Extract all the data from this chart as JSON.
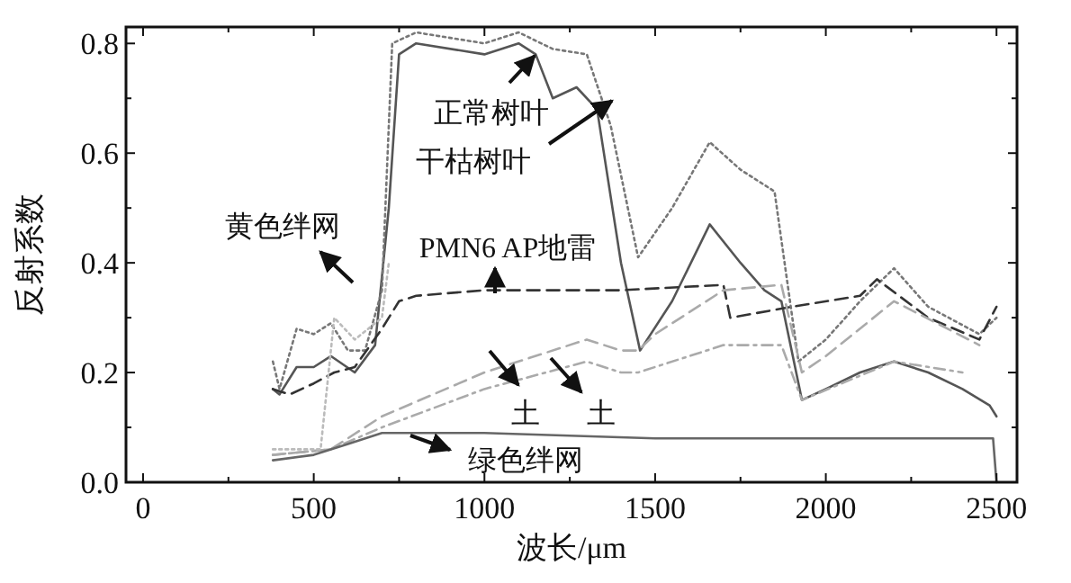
{
  "chart_data": {
    "type": "line",
    "xlabel": "波长/μm",
    "ylabel": "反射系数",
    "xlim": [
      -50,
      2560
    ],
    "ylim": [
      0,
      0.83
    ],
    "xticks": [
      0,
      {
        "value": 250,
        "label": null
      },
      500,
      {
        "value": 750,
        "label": null
      },
      1000,
      {
        "value": 1250,
        "label": null
      },
      1500,
      {
        "value": 1750,
        "label": null
      },
      2000,
      {
        "value": 2250,
        "label": null
      },
      2500
    ],
    "yticks": [
      {
        "value": 0,
        "label": "0.0"
      },
      {
        "value": 0.1,
        "label": null
      },
      {
        "value": 0.2,
        "label": "0.2"
      },
      {
        "value": 0.3,
        "label": null
      },
      {
        "value": 0.4,
        "label": "0.4"
      },
      {
        "value": 0.5,
        "label": null
      },
      {
        "value": 0.6,
        "label": "0.6"
      },
      {
        "value": 0.7,
        "label": null
      },
      {
        "value": 0.8,
        "label": "0.8"
      }
    ],
    "grid": false,
    "series": [
      {
        "color": "#555555",
        "line_style": "solid",
        "x": [
          380,
          400,
          450,
          500,
          550,
          620,
          680,
          720,
          750,
          800,
          1000,
          1100,
          1150,
          1200,
          1270,
          1330,
          1400,
          1456,
          1550,
          1660,
          1750,
          1820,
          1870,
          1930,
          2000,
          2100,
          2200,
          2300,
          2400,
          2480,
          2500
        ],
        "values": [
          0.17,
          0.16,
          0.21,
          0.21,
          0.23,
          0.2,
          0.25,
          0.5,
          0.78,
          0.8,
          0.78,
          0.8,
          0.78,
          0.7,
          0.72,
          0.68,
          0.4,
          0.24,
          0.33,
          0.47,
          0.4,
          0.35,
          0.33,
          0.15,
          0.17,
          0.2,
          0.22,
          0.2,
          0.17,
          0.14,
          0.12
        ]
      },
      {
        "color": "#777777",
        "line_style": "dotted",
        "x": [
          380,
          400,
          450,
          500,
          550,
          600,
          650,
          700,
          730,
          800,
          1000,
          1100,
          1200,
          1300,
          1370,
          1450,
          1550,
          1660,
          1750,
          1850,
          1920,
          2000,
          2100,
          2200,
          2300,
          2450,
          2500
        ],
        "values": [
          0.22,
          0.17,
          0.28,
          0.27,
          0.29,
          0.24,
          0.24,
          0.35,
          0.8,
          0.82,
          0.8,
          0.82,
          0.79,
          0.78,
          0.65,
          0.41,
          0.5,
          0.62,
          0.57,
          0.53,
          0.22,
          0.26,
          0.33,
          0.39,
          0.32,
          0.27,
          0.3
        ]
      },
      {
        "color": "#333333",
        "line_style": "dashed",
        "x": [
          380,
          430,
          500,
          560,
          620,
          700,
          750,
          800,
          1000,
          1400,
          1700,
          1720,
          1900,
          2100,
          2150,
          2300,
          2450,
          2500
        ],
        "values": [
          0.17,
          0.16,
          0.18,
          0.2,
          0.21,
          0.28,
          0.33,
          0.34,
          0.35,
          0.35,
          0.36,
          0.3,
          0.32,
          0.34,
          0.37,
          0.3,
          0.26,
          0.32
        ]
      },
      {
        "color": "#aaaaaa",
        "line_style": "dashed",
        "x": [
          380,
          550,
          700,
          1000,
          1300,
          1400,
          1450,
          1500,
          1700,
          1870,
          1930,
          2000,
          2200,
          2450
        ],
        "values": [
          0.05,
          0.06,
          0.12,
          0.2,
          0.26,
          0.24,
          0.24,
          0.27,
          0.35,
          0.36,
          0.2,
          0.23,
          0.33,
          0.25
        ]
      },
      {
        "color": "#aaaaaa",
        "line_style": "dashdot",
        "x": [
          380,
          550,
          700,
          1000,
          1300,
          1400,
          1450,
          1700,
          1870,
          1930,
          2200,
          2400
        ],
        "values": [
          0.05,
          0.06,
          0.1,
          0.17,
          0.22,
          0.2,
          0.2,
          0.25,
          0.25,
          0.15,
          0.22,
          0.2
        ]
      },
      {
        "color": "#666666",
        "line_style": "solid",
        "x": [
          380,
          500,
          600,
          700,
          1000,
          1500,
          2000,
          2490,
          2500
        ],
        "values": [
          0.04,
          0.05,
          0.07,
          0.09,
          0.09,
          0.08,
          0.08,
          0.08,
          0.0
        ]
      },
      {
        "color": "#bbbbbb",
        "line_style": "dotted",
        "x": [
          380,
          520,
          560,
          620,
          700,
          720
        ],
        "values": [
          0.06,
          0.06,
          0.3,
          0.26,
          0.3,
          0.4
        ]
      }
    ],
    "annotations": [
      "正常树叶",
      "干枯树叶",
      "黄色绊网",
      "PMN6 AP地雷",
      "土",
      "土",
      "绿色绊网"
    ]
  }
}
